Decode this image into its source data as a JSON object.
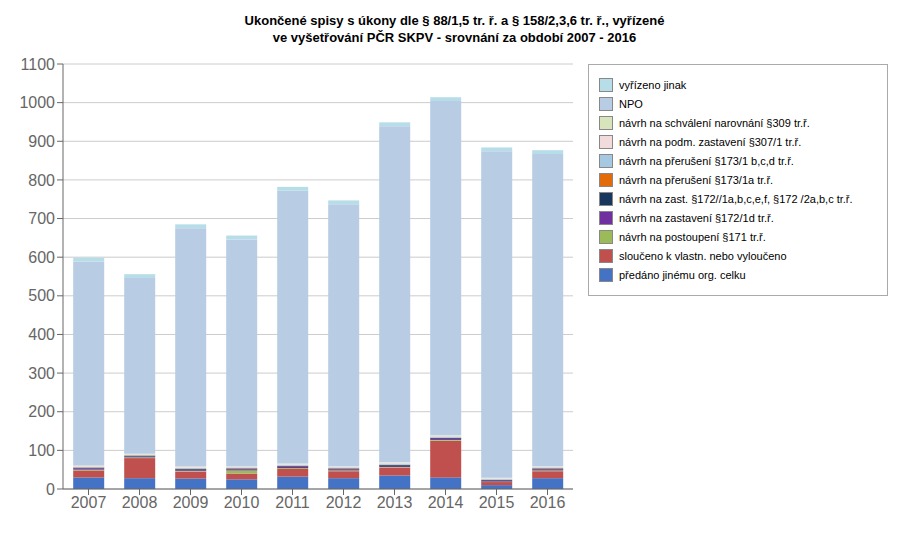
{
  "chart_data": {
    "type": "bar",
    "title": "Ukončené spisy s úkony dle § 88/1,5 tr. ř. a § 158/2,3,6 tr. ř., vyřízené\nve vyšetřování PČR SKPV - srovnání za období 2007 - 2016",
    "categories": [
      "2007",
      "2008",
      "2009",
      "2010",
      "2011",
      "2012",
      "2013",
      "2014",
      "2015",
      "2016"
    ],
    "series": [
      {
        "name": "předáno jinému org. celku",
        "color": "#4472C4",
        "values": [
          30,
          28,
          27,
          25,
          32,
          28,
          35,
          30,
          10,
          28
        ]
      },
      {
        "name": "sloučeno k vlastn. nebo vyloučeno",
        "color": "#C0504D",
        "values": [
          18,
          52,
          18,
          15,
          20,
          18,
          20,
          95,
          8,
          18
        ]
      },
      {
        "name": "návrh na postoupení §171 tr.ř.",
        "color": "#9BBB59",
        "values": [
          2,
          2,
          2,
          8,
          2,
          2,
          2,
          2,
          1,
          2
        ]
      },
      {
        "name": "návrh na zastavení §172/1d tr.ř.",
        "color": "#7030A0",
        "values": [
          3,
          2,
          3,
          3,
          3,
          3,
          3,
          3,
          2,
          3
        ]
      },
      {
        "name": "návrh na zast. §172//1a,b,c,e,f, §172 /2a,b,c tr.ř.",
        "color": "#17375E",
        "values": [
          2,
          2,
          2,
          2,
          2,
          2,
          2,
          2,
          2,
          2
        ]
      },
      {
        "name": "návrh na přerušení §173/1a tr.ř.",
        "color": "#E36C09",
        "values": [
          1,
          1,
          1,
          1,
          1,
          1,
          1,
          1,
          1,
          1
        ]
      },
      {
        "name": "návrh na přerušení §173/1 b,c,d  tr.ř.",
        "color": "#A6C9E2",
        "values": [
          2,
          2,
          2,
          2,
          3,
          2,
          3,
          3,
          2,
          2
        ]
      },
      {
        "name": "návrh na podm. zastavení §307/1 tr.ř.",
        "color": "#F2DCDB",
        "values": [
          2,
          1,
          2,
          2,
          2,
          2,
          2,
          2,
          2,
          2
        ]
      },
      {
        "name": "návrh na schválení narovnání §309 tr.ř.",
        "color": "#D8E4BC",
        "values": [
          1,
          1,
          1,
          1,
          1,
          1,
          1,
          1,
          1,
          1
        ]
      },
      {
        "name": "NPO",
        "color": "#B8CCE4",
        "values": [
          528,
          455,
          617,
          587,
          706,
          678,
          870,
          865,
          845,
          808
        ]
      },
      {
        "name": "vyřízeno jinak",
        "color": "#B7DEE8",
        "values": [
          10,
          10,
          10,
          10,
          10,
          10,
          10,
          10,
          10,
          10
        ]
      }
    ],
    "ylim": [
      0,
      1100
    ],
    "yticks": [
      0,
      100,
      200,
      300,
      400,
      500,
      600,
      700,
      800,
      900,
      1000,
      1100
    ],
    "grid": true,
    "stacked": true,
    "legend": "right"
  }
}
